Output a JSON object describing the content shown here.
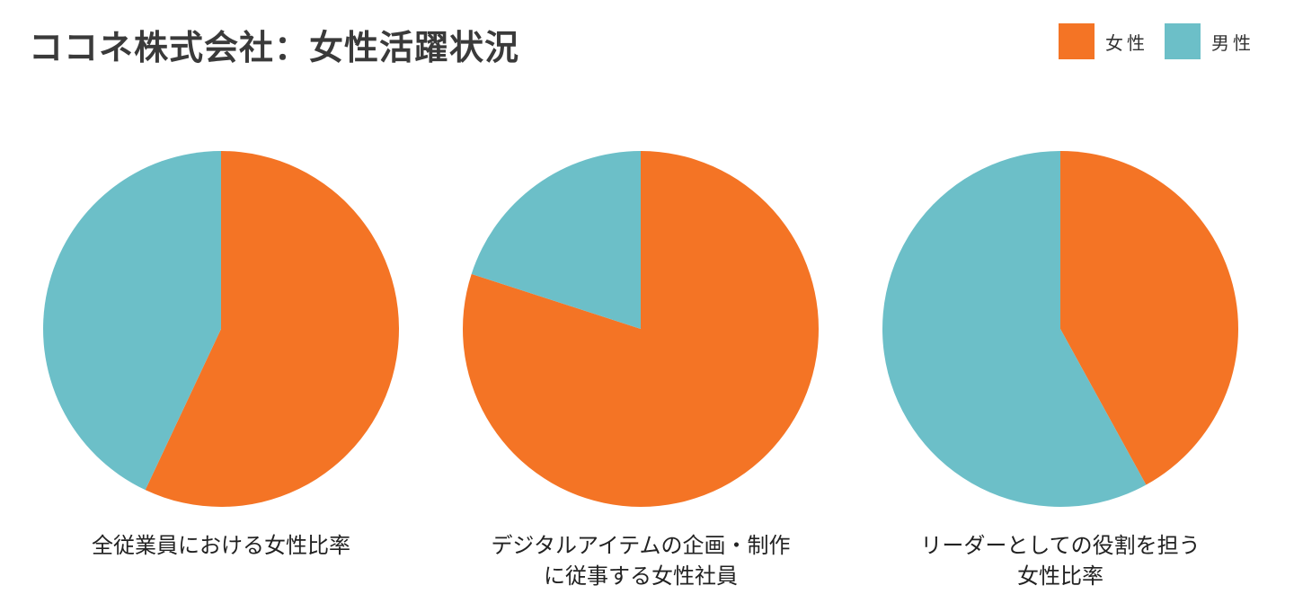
{
  "title": "ココネ株式会社：女性活躍状況",
  "colors": {
    "female": "#F47425",
    "male": "#6CBFC8"
  },
  "legend": [
    {
      "label": "女性",
      "color": "#F47425",
      "icon": "square-swatch"
    },
    {
      "label": "男性",
      "color": "#6CBFC8",
      "icon": "square-swatch"
    }
  ],
  "chart_data": [
    {
      "type": "pie",
      "caption_lines": [
        "全従業員における女性比率"
      ],
      "slices": [
        {
          "name": "女性",
          "value": 57
        },
        {
          "name": "男性",
          "value": 43
        }
      ]
    },
    {
      "type": "pie",
      "caption_lines": [
        "デジタルアイテムの企画・制作",
        "に従事する女性社員"
      ],
      "slices": [
        {
          "name": "女性",
          "value": 80
        },
        {
          "name": "男性",
          "value": 20
        }
      ]
    },
    {
      "type": "pie",
      "caption_lines": [
        "リーダーとしての役割を担う",
        "女性比率"
      ],
      "slices": [
        {
          "name": "女性",
          "value": 42
        },
        {
          "name": "男性",
          "value": 58
        }
      ]
    }
  ]
}
